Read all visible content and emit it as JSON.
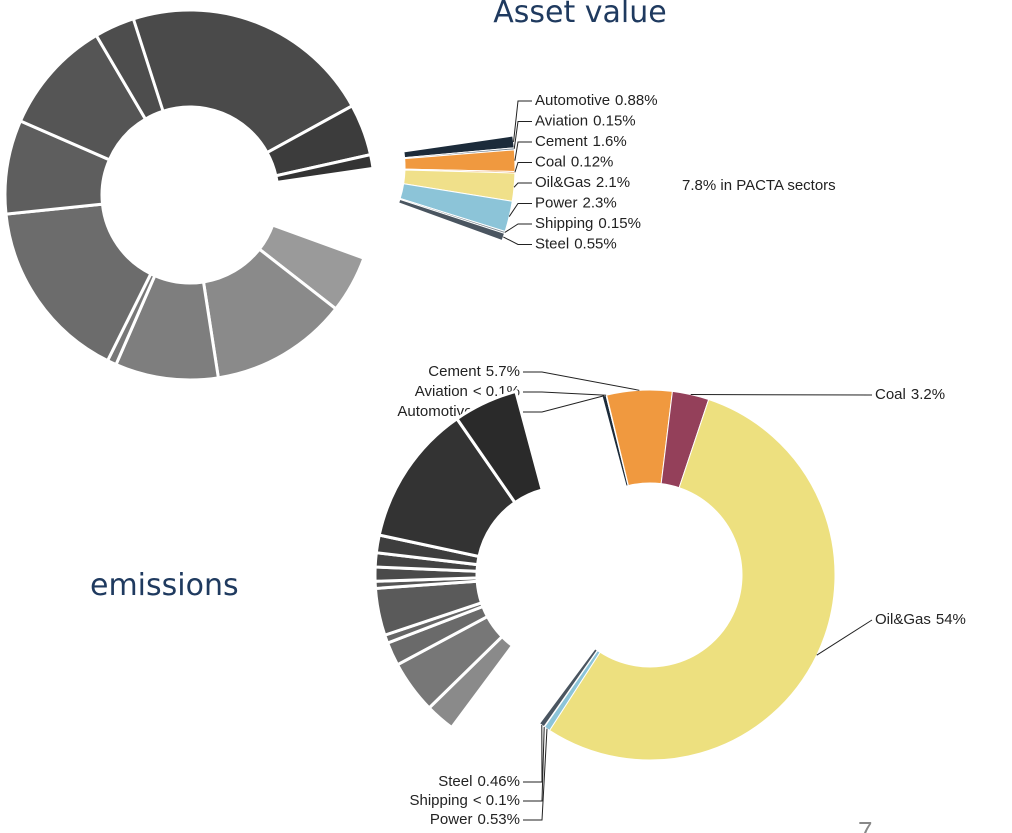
{
  "page_number": "7",
  "chart_data": [
    {
      "type": "donut",
      "title": "Asset value",
      "annotation": "7.8% in PACTA sectors",
      "categories": [
        null,
        null,
        null,
        "Automotive",
        "Aviation",
        "Cement",
        "Coal",
        "Oil&Gas",
        "Power",
        "Shipping",
        "Steel",
        null,
        null,
        null,
        null,
        null,
        null,
        null,
        null
      ],
      "values": [
        22,
        4.5,
        1.2,
        0.88,
        0.15,
        1.6,
        0.12,
        2.1,
        2.3,
        0.15,
        0.55,
        5,
        12,
        9,
        0.8,
        16,
        8.2,
        10,
        3.5
      ],
      "value_labels": [
        null,
        null,
        null,
        "0.88%",
        "0.15%",
        "1.6%",
        "0.12%",
        "2.1%",
        "2.3%",
        "0.15%",
        "0.55%",
        null,
        null,
        null,
        null,
        null,
        null,
        null,
        null
      ],
      "colors": [
        "#4a4a4a",
        "#3c3c3c",
        "#333333",
        "#1c2b3a",
        "#6e7f8e",
        "#f0993f",
        "#e8903a",
        "#f0e08a",
        "#8cc4d8",
        "#7d8a92",
        "#4a5560",
        "#9a9a9a",
        "#8a8a8a",
        "#7e7e7e",
        "#777777",
        "#6c6c6c",
        "#5e5e5e",
        "#555555",
        "#4d4d4d"
      ]
    },
    {
      "type": "donut",
      "title": "emissions",
      "categories": [
        "Automotive",
        "Aviation",
        "Cement",
        "Coal",
        "Oil&Gas",
        "Power",
        "Shipping",
        "Steel",
        null,
        null,
        null,
        null,
        null,
        null,
        null,
        null,
        null,
        null,
        null
      ],
      "values": [
        0.35,
        0.05,
        5.7,
        3.2,
        54,
        0.53,
        0.05,
        0.46,
        2.5,
        4.5,
        2.0,
        0.7,
        4.0,
        0.6,
        1.2,
        1.2,
        1.5,
        12.0,
        5.46
      ],
      "value_labels": [
        "0.35%",
        "< 0.1%",
        "5.7%",
        "3.2%",
        "54%",
        "0.53%",
        "< 0.1%",
        "0.46%",
        null,
        null,
        null,
        null,
        null,
        null,
        null,
        null,
        null,
        null,
        null
      ],
      "colors": [
        "#1c2b3a",
        "#6e7f8e",
        "#f0993f",
        "#94405a",
        "#ede07f",
        "#8cc4d8",
        "#7d8a92",
        "#4a5560",
        "#8a8a8a",
        "#777777",
        "#6a6a6a",
        "#666666",
        "#5a5a5a",
        "#555555",
        "#4a4a4a",
        "#444444",
        "#3e3e3e",
        "#333333",
        "#2a2a2a"
      ]
    }
  ]
}
